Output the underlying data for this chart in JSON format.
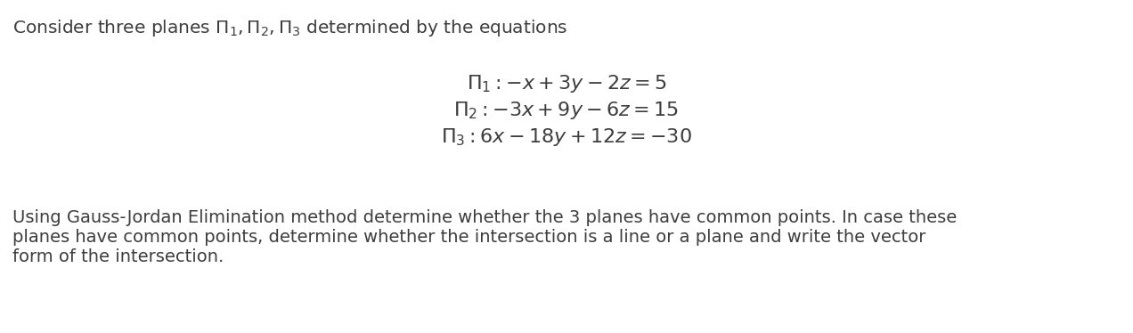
{
  "bg_color": "#ffffff",
  "text_color": "#3d3d3d",
  "header_text": "Consider three planes $\\Pi_1, \\Pi_2, \\Pi_3$ determined by the equations",
  "eq1": "$\\Pi_1 : {-x} + 3y - 2z = 5$",
  "eq2": "$\\Pi_2 : {-3x} + 9y - 6z = 15$",
  "eq3": "$\\Pi_3 : 6x - 18y + 12z = {-30}$",
  "body_line1": "Using Gauss-Jordan Elimination method determine whether the 3 planes have common points. In case these",
  "body_line2": "planes have common points, determine whether the intersection is a line or a plane and write the vector",
  "body_line3": "form of the intersection.",
  "header_fontsize": 14.5,
  "eq_fontsize": 16,
  "body_fontsize": 14.0,
  "fig_width": 12.72,
  "fig_height": 3.74,
  "dpi": 100
}
